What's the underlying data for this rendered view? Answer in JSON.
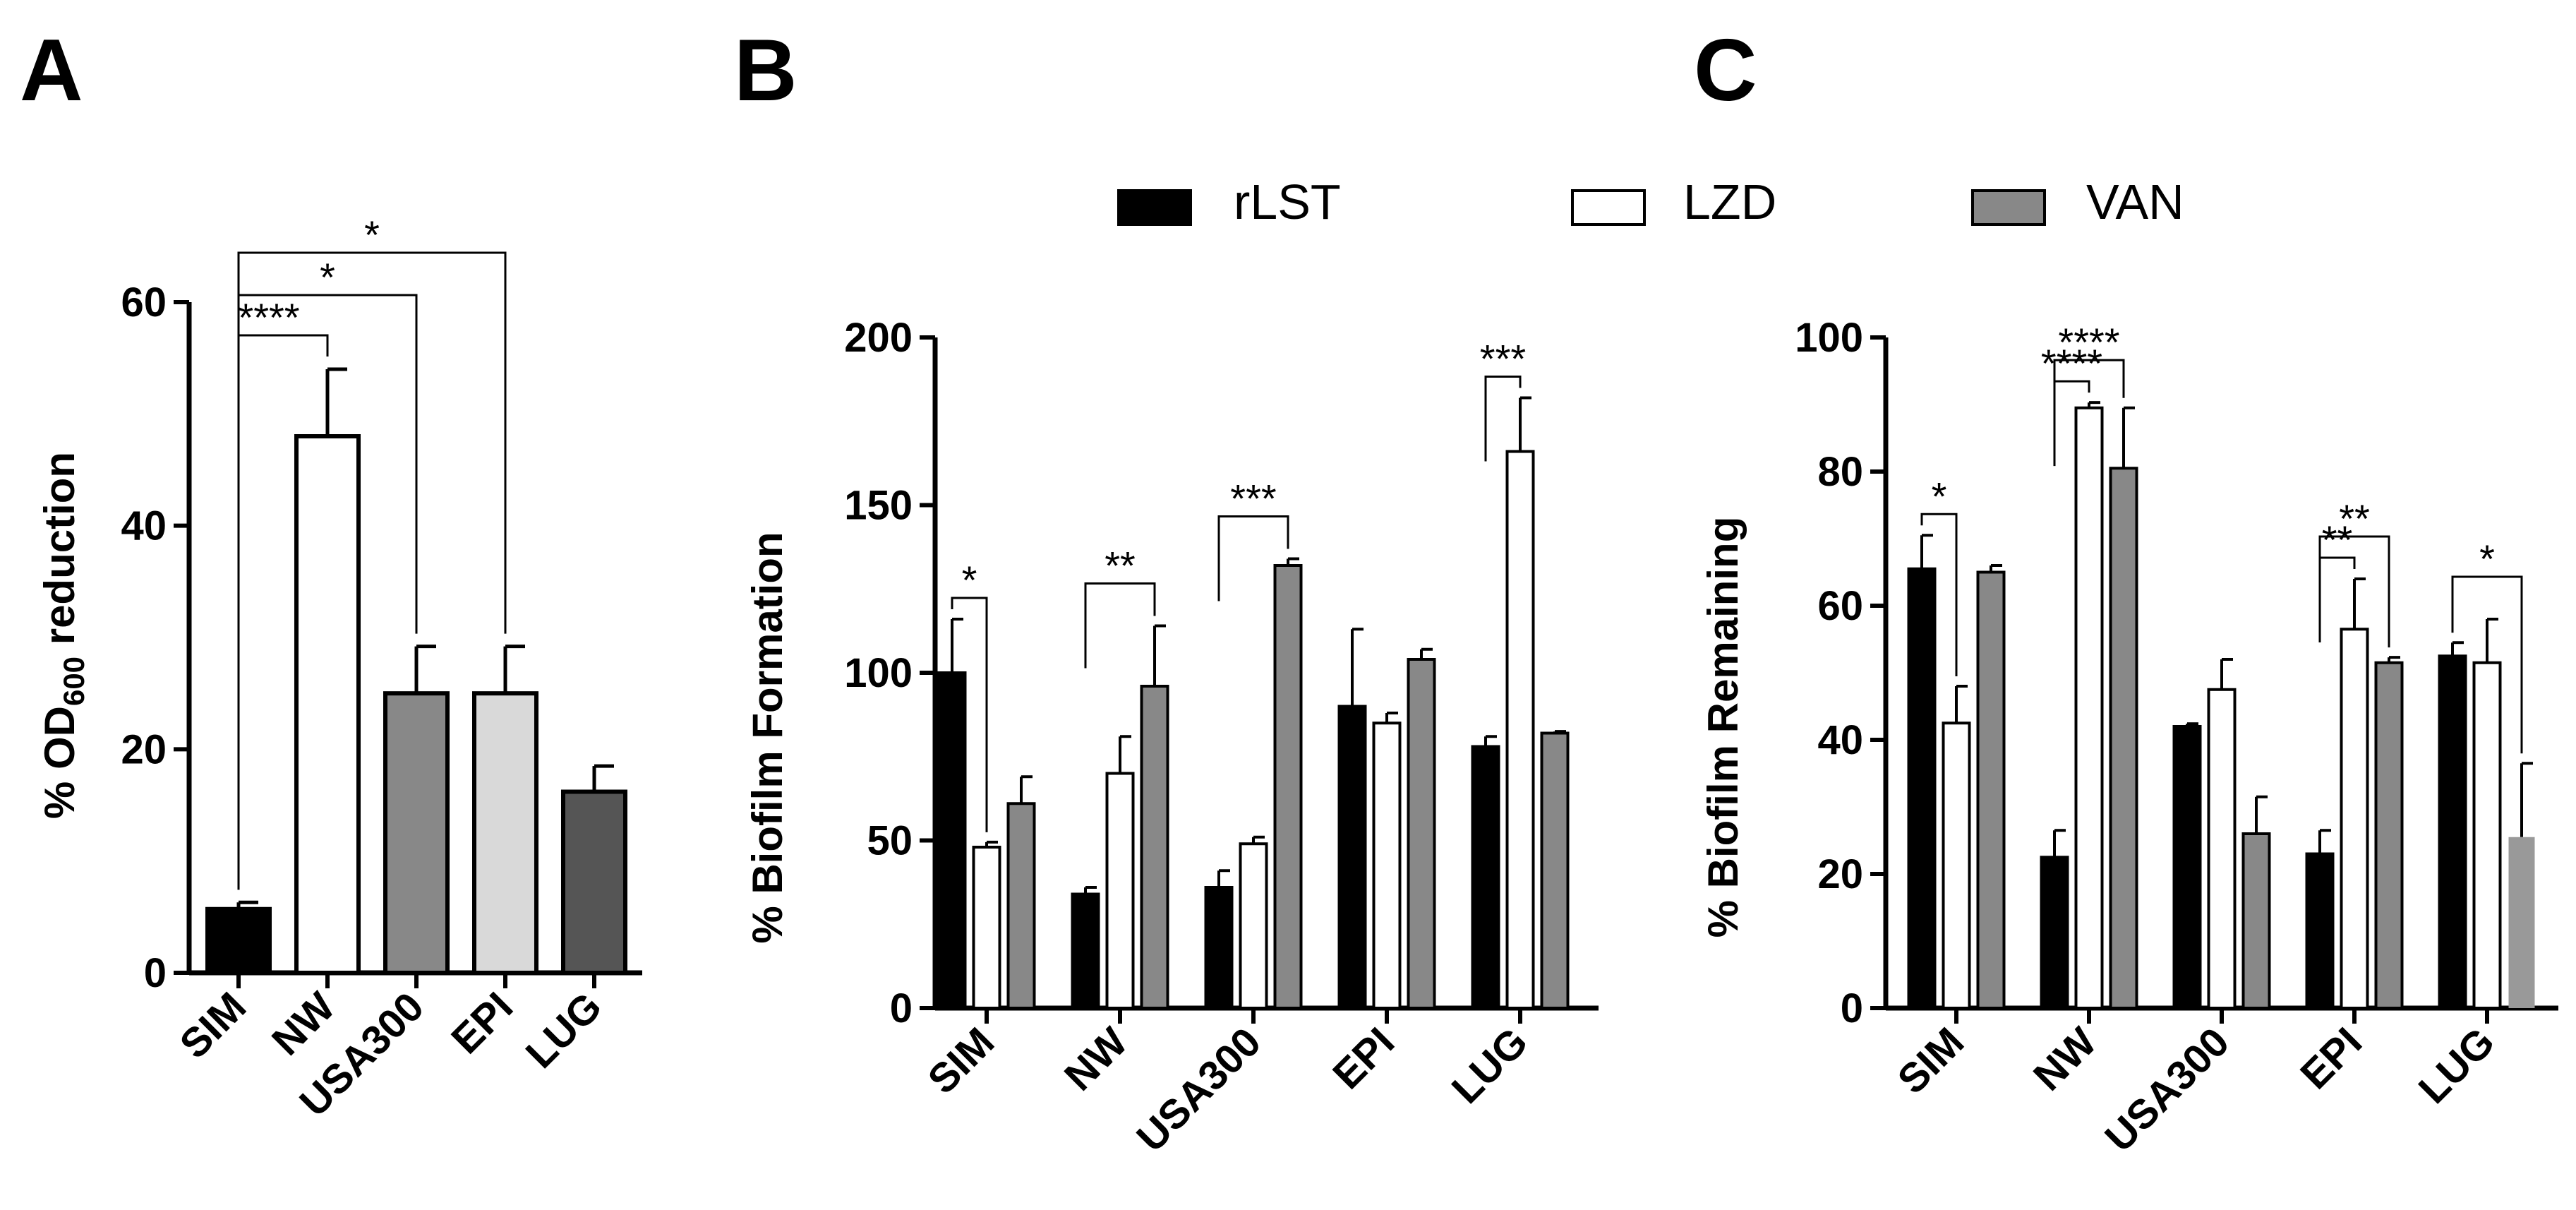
{
  "colors": {
    "black": "#000000",
    "white": "#ffffff",
    "gray": "#888888",
    "lightgray": "#d9d9d9",
    "darkgray": "#555555"
  },
  "legend": [
    {
      "label": "rLST",
      "color": "#000000"
    },
    {
      "label": "LZD",
      "color": "#ffffff"
    },
    {
      "label": "VAN",
      "color": "#888888"
    }
  ],
  "chart_data": [
    {
      "panel": "A",
      "type": "bar",
      "ylabel_prefix": "% OD",
      "ylabel_sub": "600",
      "ylabel_suffix": " reduction",
      "ylim": [
        0,
        60
      ],
      "yticks": [
        0,
        20,
        40,
        60
      ],
      "categories": [
        "SIM",
        "NW",
        "USA300",
        "EPI",
        "LUG"
      ],
      "values": [
        5.7,
        48,
        25,
        25,
        16.2
      ],
      "errors": [
        0.6,
        6,
        4.2,
        4.2,
        2.3
      ],
      "bar_colors": [
        "#000000",
        "#ffffff",
        "#888888",
        "#d9d9d9",
        "#555555"
      ],
      "significance": [
        {
          "from": 0,
          "to": 1,
          "label": "****"
        },
        {
          "from": 0,
          "to": 2,
          "label": "*"
        },
        {
          "from": 0,
          "to": 3,
          "label": "*"
        }
      ]
    },
    {
      "panel": "B",
      "type": "bar",
      "ylabel": "% Biofilm Formation",
      "ylim": [
        0,
        200
      ],
      "yticks": [
        0,
        50,
        100,
        150,
        200
      ],
      "categories": [
        "SIM",
        "NW",
        "USA300",
        "EPI",
        "LUG"
      ],
      "series": [
        {
          "name": "rLST",
          "values": [
            100,
            34,
            36,
            90,
            78
          ],
          "errors": [
            16,
            2,
            5,
            23,
            3
          ]
        },
        {
          "name": "LZD",
          "values": [
            48,
            70,
            49,
            85,
            166
          ],
          "errors": [
            1.5,
            11,
            2,
            3,
            16
          ]
        },
        {
          "name": "VAN",
          "values": [
            61,
            96,
            132,
            104,
            82
          ],
          "errors": [
            8,
            18,
            2,
            3,
            0.5
          ]
        }
      ],
      "significance": [
        {
          "cat": 0,
          "a": 0,
          "b": 1,
          "label": "*"
        },
        {
          "cat": 1,
          "a": 0,
          "b": 2,
          "label": "**"
        },
        {
          "cat": 2,
          "a": 0,
          "b": 2,
          "label": "***"
        },
        {
          "cat": 4,
          "a": 0,
          "b": 1,
          "label": "***"
        }
      ]
    },
    {
      "panel": "C",
      "type": "bar",
      "ylabel": "% Biofilm Remaining",
      "ylim": [
        0,
        100
      ],
      "yticks": [
        0,
        20,
        40,
        60,
        80,
        100
      ],
      "categories": [
        "SIM",
        "NW",
        "USA300",
        "EPI",
        "LUG"
      ],
      "series": [
        {
          "name": "rLST",
          "values": [
            65.5,
            22.5,
            42,
            23,
            52.5
          ],
          "errors": [
            5,
            4,
            0.4,
            3.5,
            2
          ]
        },
        {
          "name": "LZD",
          "values": [
            42.5,
            89.5,
            47.5,
            56.5,
            51.5
          ],
          "errors": [
            5.5,
            0.8,
            4.5,
            7.5,
            6.5
          ]
        },
        {
          "name": "VAN",
          "values": [
            65,
            80.5,
            26,
            51.5,
            25.5
          ],
          "errors": [
            1,
            9,
            5.5,
            0.8,
            11
          ]
        }
      ],
      "significance": [
        {
          "cat": 0,
          "a": 0,
          "b": 1,
          "label": "*"
        },
        {
          "cat": 1,
          "a": 0,
          "b": 2,
          "label": "****"
        },
        {
          "cat": 1,
          "a": 0,
          "b": 1,
          "label": "****"
        },
        {
          "cat": 3,
          "a": 0,
          "b": 2,
          "label": "**"
        },
        {
          "cat": 3,
          "a": 0,
          "b": 1,
          "label": "**"
        },
        {
          "cat": 4,
          "a": 0,
          "b": 2,
          "label": "*"
        }
      ]
    }
  ]
}
